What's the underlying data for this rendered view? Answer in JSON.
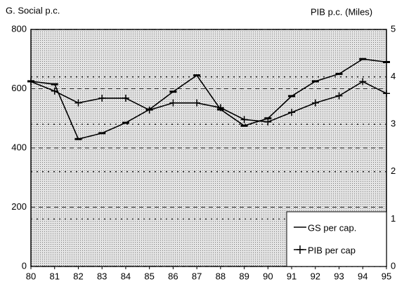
{
  "chart_data": {
    "type": "line",
    "y_label": "G. Social p.c.",
    "y2_label": "PIB p.c. (Miles)",
    "x": [
      80,
      81,
      82,
      83,
      84,
      85,
      86,
      87,
      88,
      89,
      90,
      91,
      92,
      93,
      94,
      95
    ],
    "xlim": [
      80,
      95
    ],
    "xticks": [
      80,
      81,
      82,
      83,
      84,
      85,
      86,
      87,
      88,
      89,
      90,
      91,
      92,
      93,
      94,
      95
    ],
    "ylim": [
      0,
      800
    ],
    "yticks": [
      0,
      200,
      400,
      600,
      800
    ],
    "y2lim": [
      0,
      5
    ],
    "y2ticks": [
      0,
      1,
      2,
      3,
      4,
      5
    ],
    "grid": true,
    "legend": "lower right",
    "series": [
      {
        "name": "GS per cap.",
        "color": "#000000",
        "marker": "dash",
        "values": [
          625,
          615,
          430,
          450,
          485,
          530,
          590,
          645,
          530,
          475,
          500,
          575,
          625,
          650,
          700,
          690
        ]
      },
      {
        "name": "PIB per cap",
        "color": "#000000",
        "marker": "plus",
        "axis": "y2",
        "values": [
          3.9,
          3.7,
          3.45,
          3.55,
          3.55,
          3.3,
          3.45,
          3.45,
          3.35,
          3.1,
          3.05,
          3.25,
          3.45,
          3.6,
          3.9,
          3.65
        ]
      }
    ]
  }
}
